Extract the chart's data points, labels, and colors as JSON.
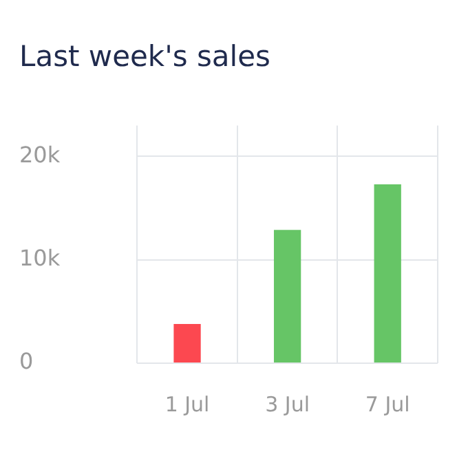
{
  "chart_data": {
    "type": "bar",
    "title": "Last week's sales",
    "categories": [
      "1 Jul",
      "3 Jul",
      "7 Jul"
    ],
    "values": [
      3800,
      12900,
      17300
    ],
    "colors": [
      "#fc4850",
      "#66c566",
      "#66c566"
    ],
    "ylim": [
      0,
      23000
    ],
    "yticks": [
      0,
      {
        "value": 10000,
        "label": "10k"
      },
      {
        "value": 20000,
        "label": "20k"
      }
    ],
    "grid": true,
    "legend": false
  }
}
